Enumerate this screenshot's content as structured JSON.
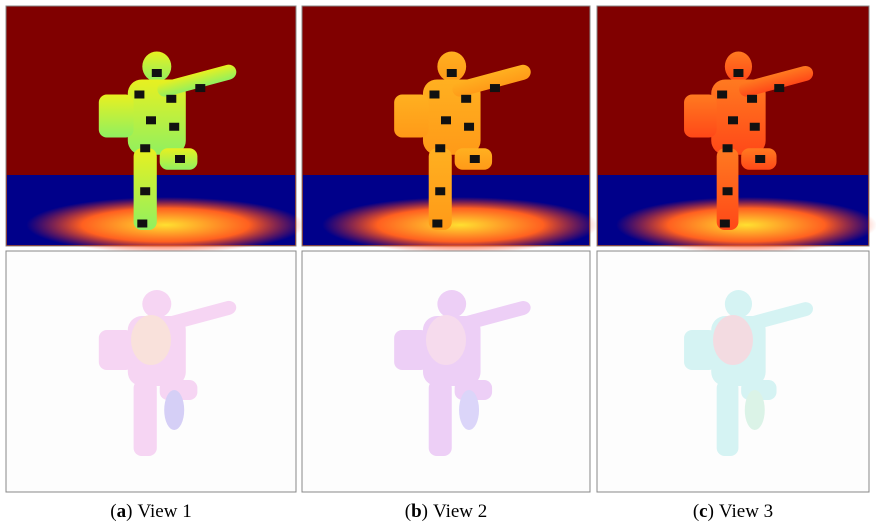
{
  "figure": {
    "panels": [
      {
        "open": "(",
        "label": "a",
        "close": ")",
        "text": "View 1"
      },
      {
        "open": "(",
        "label": "b",
        "close": ")",
        "text": "View 2"
      },
      {
        "open": "(",
        "label": "c",
        "close": ")",
        "text": "View 3"
      }
    ]
  }
}
